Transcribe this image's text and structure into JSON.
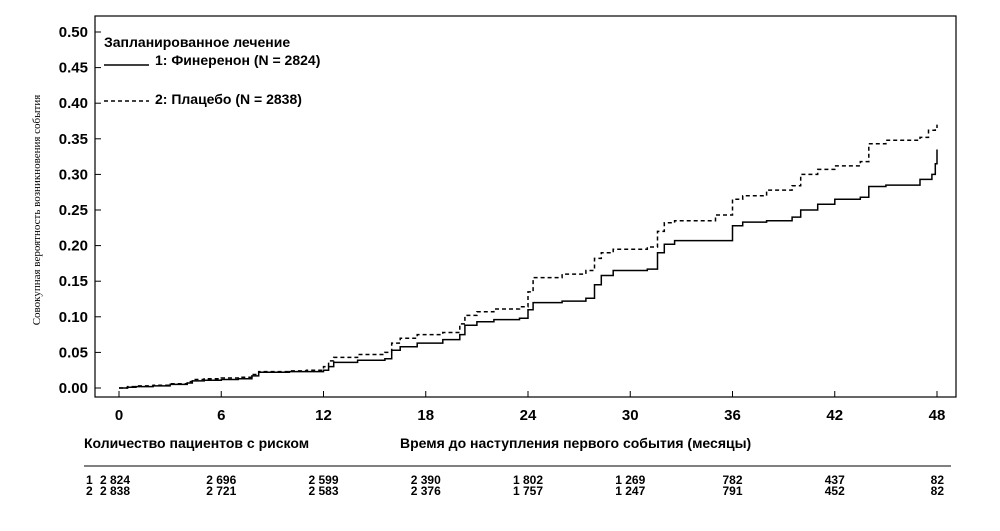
{
  "chart_data": {
    "type": "line",
    "ylabel": "Совокупная вероятность возникновения события",
    "xlabel": "Время до наступления первого события (месяцы)",
    "xlim": [
      0,
      48
    ],
    "ylim": [
      0,
      0.5
    ],
    "x_ticks": [
      "0",
      "6",
      "12",
      "18",
      "24",
      "30",
      "36",
      "42",
      "48"
    ],
    "y_ticks": [
      "0.00",
      "0.05",
      "0.10",
      "0.15",
      "0.20",
      "0.25",
      "0.30",
      "0.35",
      "0.40",
      "0.45",
      "0.50"
    ],
    "legend": {
      "title": "Запланированное лечение",
      "placement": "top-left"
    },
    "series": [
      {
        "name": "1: Финеренон (N = 2824)",
        "style": "solid",
        "color": "#000000",
        "points": [
          [
            0,
            0
          ],
          [
            0.5,
            0.001
          ],
          [
            1,
            0.002
          ],
          [
            2,
            0.003
          ],
          [
            3,
            0.005
          ],
          [
            4,
            0.007
          ],
          [
            4.3,
            0.01
          ],
          [
            5,
            0.011
          ],
          [
            6,
            0.012
          ],
          [
            7,
            0.013
          ],
          [
            7.8,
            0.017
          ],
          [
            8.2,
            0.022
          ],
          [
            10,
            0.023
          ],
          [
            11,
            0.023
          ],
          [
            12,
            0.025
          ],
          [
            12.3,
            0.03
          ],
          [
            12.6,
            0.036
          ],
          [
            14,
            0.039
          ],
          [
            15.6,
            0.041
          ],
          [
            16,
            0.053
          ],
          [
            16.5,
            0.058
          ],
          [
            17.5,
            0.063
          ],
          [
            19,
            0.068
          ],
          [
            20,
            0.075
          ],
          [
            20.3,
            0.088
          ],
          [
            21,
            0.093
          ],
          [
            22,
            0.096
          ],
          [
            23.5,
            0.098
          ],
          [
            24,
            0.11
          ],
          [
            24.3,
            0.12
          ],
          [
            26,
            0.122
          ],
          [
            27.4,
            0.126
          ],
          [
            27.9,
            0.145
          ],
          [
            28.3,
            0.158
          ],
          [
            29,
            0.165
          ],
          [
            31,
            0.167
          ],
          [
            31.6,
            0.19
          ],
          [
            32,
            0.202
          ],
          [
            32.6,
            0.207
          ],
          [
            35,
            0.207
          ],
          [
            36,
            0.228
          ],
          [
            36.6,
            0.233
          ],
          [
            38,
            0.235
          ],
          [
            39.5,
            0.24
          ],
          [
            40,
            0.25
          ],
          [
            41,
            0.258
          ],
          [
            42,
            0.265
          ],
          [
            43.5,
            0.268
          ],
          [
            44,
            0.283
          ],
          [
            45,
            0.285
          ],
          [
            47,
            0.293
          ],
          [
            47.7,
            0.3
          ],
          [
            47.9,
            0.315
          ],
          [
            48,
            0.335
          ]
        ]
      },
      {
        "name": "2: Плацебо (N = 2838)",
        "style": "dashed",
        "color": "#000000",
        "points": [
          [
            0,
            0
          ],
          [
            0.5,
            0.002
          ],
          [
            1,
            0.003
          ],
          [
            2,
            0.004
          ],
          [
            3,
            0.006
          ],
          [
            4,
            0.009
          ],
          [
            4.3,
            0.012
          ],
          [
            5,
            0.013
          ],
          [
            6,
            0.014
          ],
          [
            7,
            0.015
          ],
          [
            7.8,
            0.019
          ],
          [
            8.2,
            0.023
          ],
          [
            10,
            0.024
          ],
          [
            11,
            0.025
          ],
          [
            12,
            0.03
          ],
          [
            12.3,
            0.038
          ],
          [
            12.6,
            0.043
          ],
          [
            14,
            0.047
          ],
          [
            15.6,
            0.05
          ],
          [
            16,
            0.063
          ],
          [
            16.5,
            0.07
          ],
          [
            17.5,
            0.075
          ],
          [
            19,
            0.078
          ],
          [
            20,
            0.09
          ],
          [
            20.3,
            0.102
          ],
          [
            21,
            0.107
          ],
          [
            22,
            0.111
          ],
          [
            23.5,
            0.114
          ],
          [
            24,
            0.135
          ],
          [
            24.3,
            0.155
          ],
          [
            26,
            0.16
          ],
          [
            27.4,
            0.165
          ],
          [
            27.9,
            0.182
          ],
          [
            28.3,
            0.19
          ],
          [
            29,
            0.195
          ],
          [
            31,
            0.198
          ],
          [
            31.6,
            0.22
          ],
          [
            32,
            0.232
          ],
          [
            32.6,
            0.235
          ],
          [
            35,
            0.243
          ],
          [
            36,
            0.265
          ],
          [
            36.6,
            0.27
          ],
          [
            38,
            0.278
          ],
          [
            39.5,
            0.284
          ],
          [
            40,
            0.3
          ],
          [
            41,
            0.307
          ],
          [
            42,
            0.312
          ],
          [
            43.5,
            0.318
          ],
          [
            44,
            0.343
          ],
          [
            45,
            0.348
          ],
          [
            47,
            0.352
          ],
          [
            47.5,
            0.362
          ],
          [
            47.9,
            0.365
          ],
          [
            48,
            0.37
          ]
        ]
      }
    ],
    "risk_table": {
      "title": "Количество пациентов с риском",
      "rows": [
        {
          "label": "1",
          "values": [
            "2 824",
            "2 696",
            "2 599",
            "2 390",
            "1 802",
            "1 269",
            "782",
            "437",
            "82"
          ]
        },
        {
          "label": "2",
          "values": [
            "2 838",
            "2 721",
            "2 583",
            "2 376",
            "1 757",
            "1 247",
            "791",
            "452",
            "82"
          ]
        }
      ]
    }
  }
}
